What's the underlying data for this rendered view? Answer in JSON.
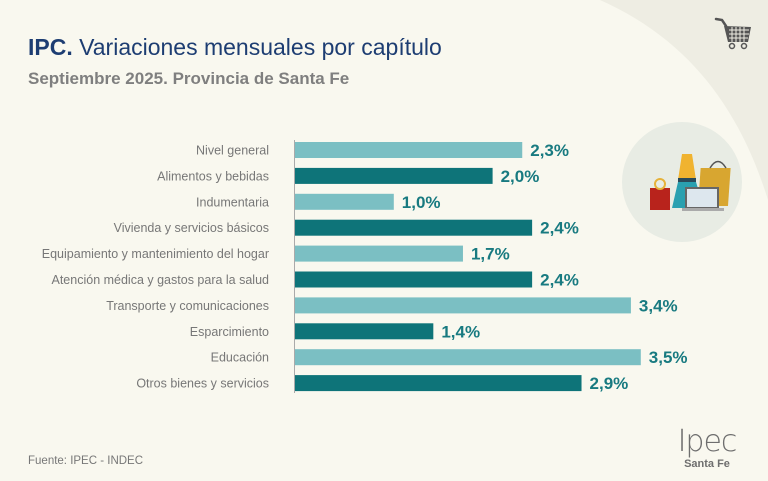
{
  "header": {
    "title_bold": "IPC.",
    "title_rest": " Variaciones mensuales por capítulo",
    "subtitle_bold": "Septiembre 2025.",
    "subtitle_rest": " Provincia de Santa Fe"
  },
  "footer": {
    "source": "Fuente: IPEC - INDEC",
    "logo_word": "Ipec",
    "logo_sub": "Santa Fe"
  },
  "icons": {
    "top_right": "shopping-cart-icon",
    "illustration": "shopping-illustration"
  },
  "colors": {
    "light_bar": "#7bbfc3",
    "dark_bar": "#0e7479",
    "value_text": "#187a80",
    "title": "#1d3d72"
  },
  "chart_data": {
    "type": "bar",
    "orientation": "horizontal",
    "title": "IPC. Variaciones mensuales por capítulo",
    "subtitle": "Septiembre 2025. Provincia de Santa Fe",
    "xlabel": "",
    "ylabel": "",
    "unit": "%",
    "xlim": [
      0,
      3.5
    ],
    "grid": false,
    "legend": "none",
    "categories": [
      "Nivel general",
      "Alimentos y bebidas",
      "Indumentaria",
      "Vivienda y servicios básicos",
      "Equipamiento y mantenimiento del hogar",
      "Atención médica y gastos para la salud",
      "Transporte y comunicaciones",
      "Esparcimiento",
      "Educación",
      "Otros bienes y servicios"
    ],
    "values": [
      2.3,
      2.0,
      1.0,
      2.4,
      1.7,
      2.4,
      3.4,
      1.4,
      3.5,
      2.9
    ],
    "value_labels": [
      "2,3%",
      "2,0%",
      "1,0%",
      "2,4%",
      "1,7%",
      "2,4%",
      "3,4%",
      "1,4%",
      "3,5%",
      "2,9%"
    ],
    "bar_styles": [
      "light",
      "dark",
      "light",
      "dark",
      "light",
      "dark",
      "light",
      "dark",
      "light",
      "dark"
    ]
  }
}
